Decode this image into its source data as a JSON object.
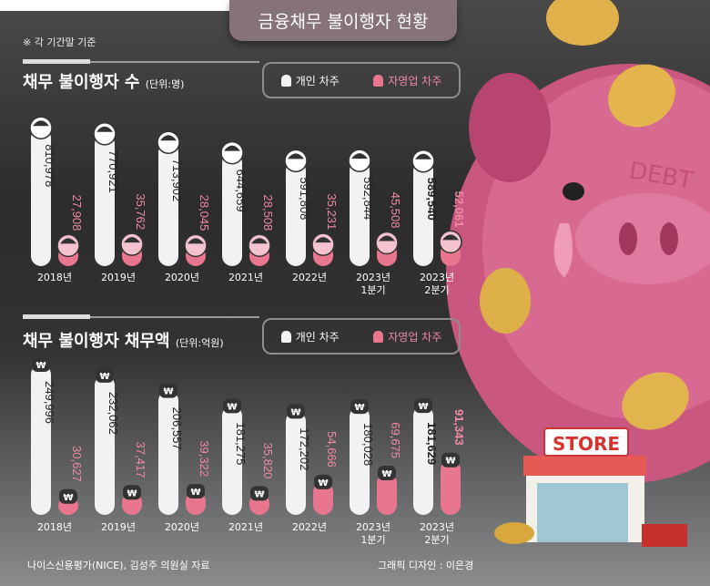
{
  "title": "금융채무 불이행자 현황",
  "note": "※ 각 기간말 기준",
  "legend": {
    "individual": "개인 차주",
    "self_employed": "자영업 차주"
  },
  "colors": {
    "individual": "#f2f2f2",
    "self_employed": "#e8768e",
    "background": "#303031"
  },
  "source": "나이스신용평가(NICE), 김성주 의원실 자료",
  "credit": "그래픽 디자인 : 이은경",
  "illustration": {
    "sign_text": "STORE",
    "pig_text": "DEBT"
  },
  "chart_data": [
    {
      "type": "bar",
      "title": "채무 불이행자 수",
      "unit": "(단위:명)",
      "categories": [
        [
          "2018년"
        ],
        [
          "2019년"
        ],
        [
          "2020년"
        ],
        [
          "2021년"
        ],
        [
          "2022년"
        ],
        [
          "2023년",
          "1분기"
        ],
        [
          "2023년",
          "2분기"
        ]
      ],
      "series": [
        {
          "name": "개인 차주",
          "values": [
            810978,
            770921,
            713902,
            644659,
            591808,
            592844,
            589540
          ]
        },
        {
          "name": "자영업 차주",
          "values": [
            27908,
            35762,
            28045,
            28508,
            35231,
            45508,
            52061
          ]
        }
      ]
    },
    {
      "type": "bar",
      "title": "채무 불이행자 채무액",
      "unit": "(단위:억원)",
      "categories": [
        [
          "2018년"
        ],
        [
          "2019년"
        ],
        [
          "2020년"
        ],
        [
          "2021년"
        ],
        [
          "2022년"
        ],
        [
          "2023년",
          "1분기"
        ],
        [
          "2023년",
          "2분기"
        ]
      ],
      "series": [
        {
          "name": "개인 차주",
          "values": [
            249996,
            232062,
            206557,
            181275,
            172202,
            180028,
            181629
          ]
        },
        {
          "name": "자영업 차주",
          "values": [
            30627,
            37417,
            39322,
            35820,
            54666,
            69675,
            91343
          ]
        }
      ]
    }
  ]
}
